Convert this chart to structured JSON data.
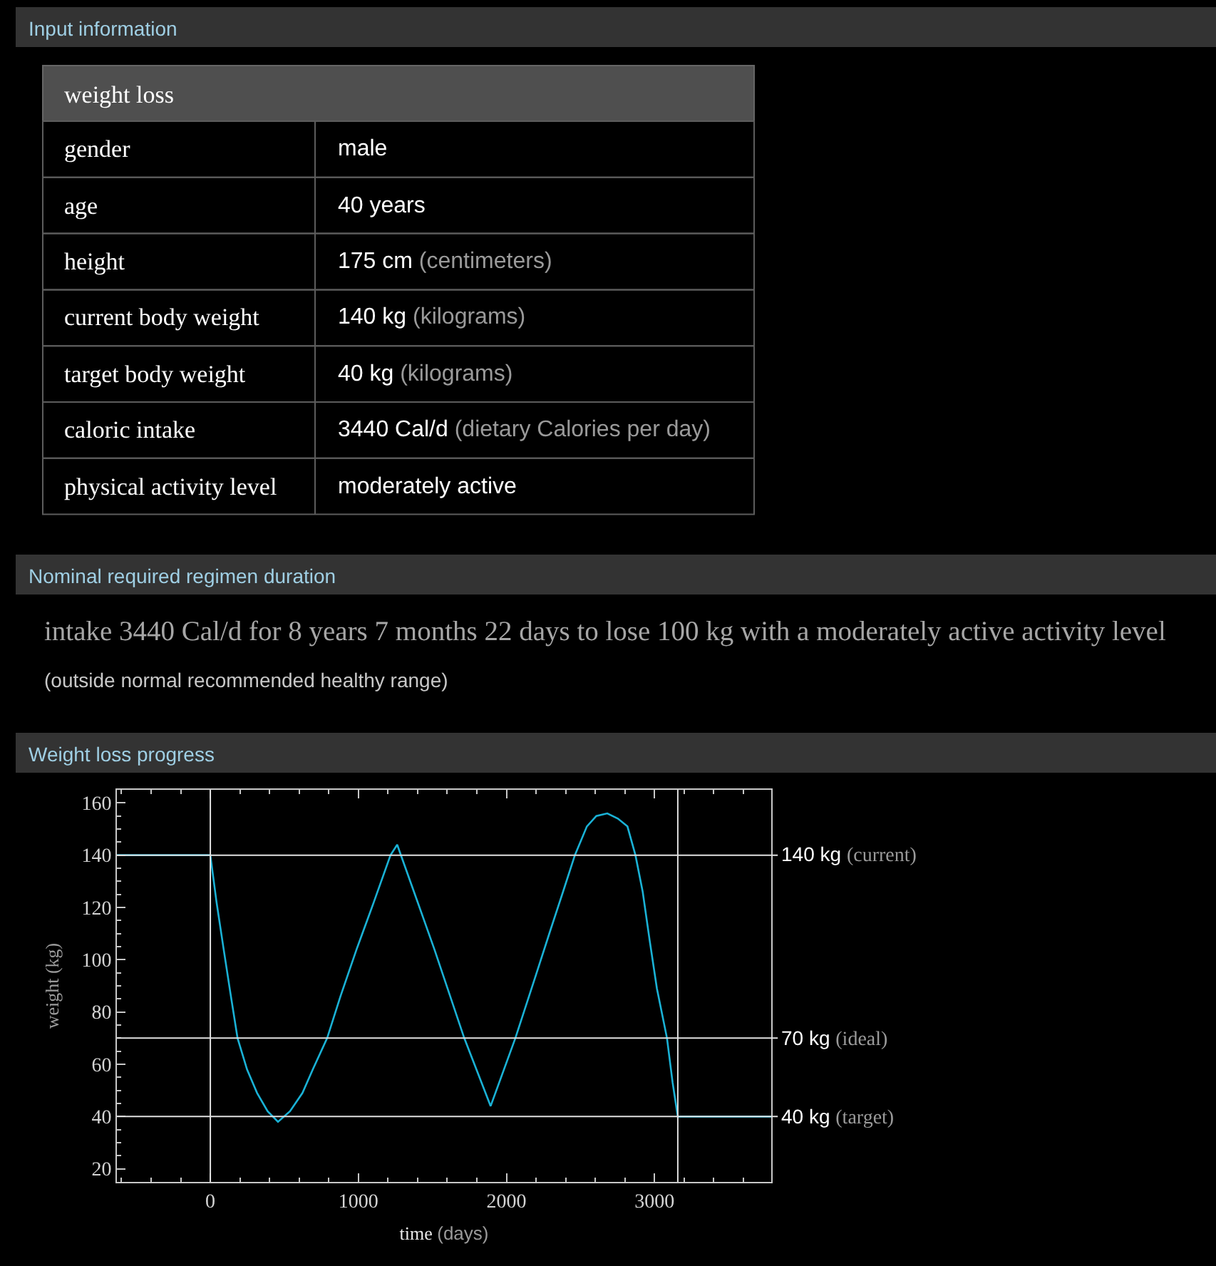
{
  "chart_data": [
    {
      "type": "other",
      "title": "Input information",
      "subtitle": "weight loss",
      "annotations": [
        "gender",
        "male",
        "age",
        "40 years",
        "height",
        "175 cm (centimeters)",
        "current body weight",
        "140 kg (kilograms)",
        "target body weight",
        "40 kg (kilograms)",
        "caloric intake",
        "3440 Cal/d (dietary Calories per day)",
        "physical activity level",
        "moderately active"
      ]
    },
    {
      "type": "other",
      "title": "Nominal required regimen duration",
      "annotations": [
        "intake 3440 Cal/d for 8 years 7 months 22 days to lose 100 kg with a moderately active activity level",
        "(outside normal recommended healthy range)"
      ]
    },
    {
      "type": "line",
      "title": "Weight loss progress",
      "xlabel": "time (days)",
      "ylabel": "weight (kg)",
      "x": [
        -631,
        0,
        42,
        90,
        139,
        184,
        248,
        316,
        387,
        457,
        538,
        622,
        692,
        789,
        879,
        988,
        1104,
        1217,
        1262,
        1394,
        1513,
        1715,
        1893,
        2060,
        2198,
        2295,
        2382,
        2462,
        2543,
        2607,
        2681,
        2752,
        2817,
        2871,
        2920,
        2968,
        3016,
        3084,
        3122,
        3157,
        3788
      ],
      "series": [
        {
          "color": "#1ab2d6",
          "values": [
            140,
            140,
            122,
            104,
            86,
            70,
            58,
            49,
            42,
            38,
            42,
            49,
            58,
            70,
            86,
            104,
            122,
            140,
            144,
            123,
            104,
            70,
            44,
            70,
            94,
            111,
            126,
            140,
            151,
            155,
            156,
            154,
            151,
            140,
            126,
            107,
            89,
            70,
            53,
            40,
            40
          ]
        }
      ],
      "xlim": [
        -631,
        3788
      ],
      "ylim": [
        15,
        165
      ],
      "xticks": [
        {
          "value": -600,
          "label": null
        },
        {
          "value": -400,
          "label": null
        },
        {
          "value": -200,
          "label": null
        },
        0,
        {
          "value": 200,
          "label": null
        },
        {
          "value": 400,
          "label": null
        },
        {
          "value": 600,
          "label": null
        },
        {
          "value": 800,
          "label": null
        },
        1000,
        {
          "value": 1200,
          "label": null
        },
        {
          "value": 1400,
          "label": null
        },
        {
          "value": 1600,
          "label": null
        },
        {
          "value": 1800,
          "label": null
        },
        2000,
        {
          "value": 2200,
          "label": null
        },
        {
          "value": 2400,
          "label": null
        },
        {
          "value": 2600,
          "label": null
        },
        {
          "value": 2800,
          "label": null
        },
        3000,
        {
          "value": 3200,
          "label": null
        },
        {
          "value": 3400,
          "label": null
        },
        {
          "value": 3600,
          "label": null
        }
      ],
      "yticks": [
        20,
        {
          "value": 25,
          "label": null
        },
        {
          "value": 30,
          "label": null
        },
        {
          "value": 35,
          "label": null
        },
        40,
        {
          "value": 45,
          "label": null
        },
        {
          "value": 50,
          "label": null
        },
        {
          "value": 55,
          "label": null
        },
        60,
        {
          "value": 65,
          "label": null
        },
        {
          "value": 70,
          "label": null
        },
        {
          "value": 75,
          "label": null
        },
        80,
        {
          "value": 85,
          "label": null
        },
        {
          "value": 90,
          "label": null
        },
        {
          "value": 95,
          "label": null
        },
        100,
        {
          "value": 105,
          "label": null
        },
        {
          "value": 110,
          "label": null
        },
        {
          "value": 115,
          "label": null
        },
        120,
        {
          "value": 125,
          "label": null
        },
        {
          "value": 130,
          "label": null
        },
        {
          "value": 135,
          "label": null
        },
        140,
        {
          "value": 145,
          "label": null
        },
        {
          "value": 150,
          "label": null
        },
        {
          "value": 155,
          "label": null
        },
        160
      ],
      "ref_lines": [
        {
          "axis": "y",
          "value": 140,
          "label": "140 kg (current)",
          "color": "#e0e0e0"
        },
        {
          "axis": "y",
          "value": 70,
          "label": "70 kg (ideal)",
          "color": "#e0e0e0"
        },
        {
          "axis": "y",
          "value": 40,
          "label": "40 kg (target)",
          "color": "#e0e0e0"
        },
        {
          "axis": "x",
          "value": 0,
          "color": "#e0e0e0"
        },
        {
          "axis": "x",
          "value": 3157,
          "color": "#e0e0e0"
        }
      ]
    }
  ]
}
